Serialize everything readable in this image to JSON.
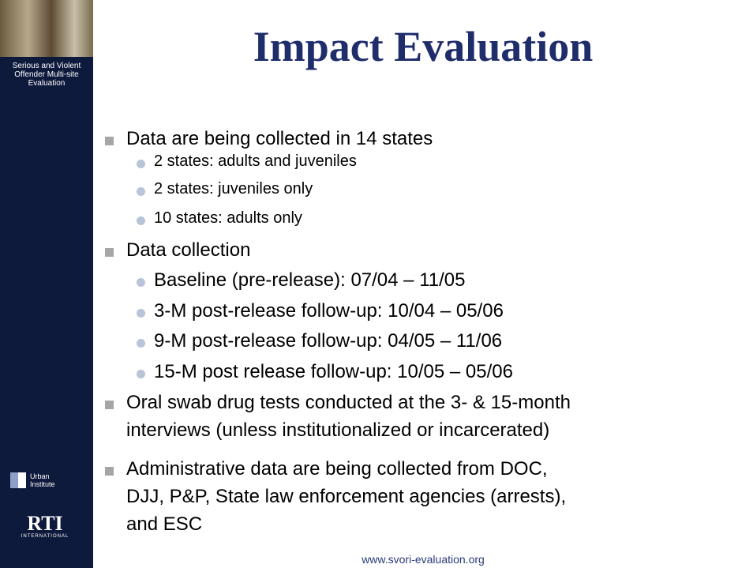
{
  "title": "Impact Evaluation",
  "sidebar": {
    "caption": "Serious and Violent Offender Multi-site Evaluation",
    "logo1": [
      "Urban",
      "Institute"
    ],
    "logo2": [
      "RTI",
      "INTERNATIONAL"
    ]
  },
  "bullets": [
    {
      "lines": [
        "Data are being collected in 14 states"
      ],
      "sub": [
        "2 states: adults and juveniles",
        "2 states: juveniles only",
        "10 states: adults only"
      ]
    },
    {
      "lines": [
        "Data collection"
      ],
      "sub": [
        "Baseline (pre-release): 07/04 – 11/05",
        "3-M post-release follow-up: 10/04 – 05/06",
        "9-M post-release follow-up: 04/05 – 11/06",
        "15-M post release follow-up: 10/05 – 05/06"
      ]
    },
    {
      "lines": [
        "Oral swab drug tests conducted at the 3- & 15-month",
        "interviews (unless institutionalized or incarcerated)"
      ],
      "sub": []
    },
    {
      "lines": [
        "Administrative data are being collected from DOC,",
        "DJJ, P&P, State law enforcement agencies (arrests),",
        "and ESC"
      ],
      "sub": []
    }
  ],
  "footer": "www.svori-evaluation.org"
}
